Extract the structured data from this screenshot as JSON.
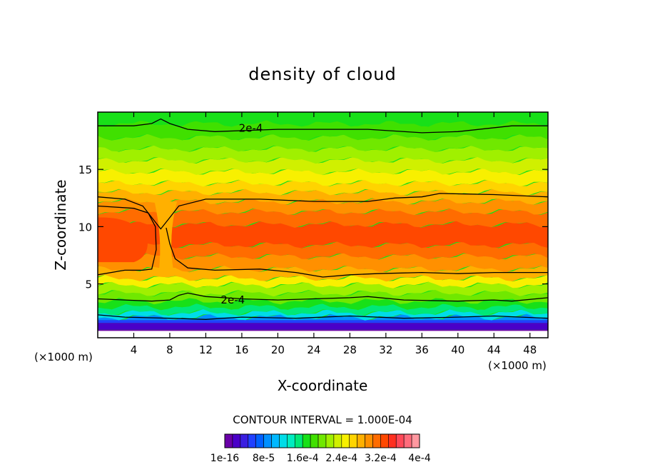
{
  "chart_data": {
    "type": "heatmap",
    "title": "density of cloud",
    "xlabel": "X-coordinate",
    "ylabel": "Z-coordinate",
    "x_unit": "(×1000 m)",
    "x_unit_right": "(×1000 m)",
    "xlim": [
      0,
      50
    ],
    "ylim": [
      0.3,
      20
    ],
    "x_ticks": [
      4,
      8,
      12,
      16,
      20,
      24,
      28,
      32,
      36,
      40,
      44,
      48
    ],
    "y_ticks": [
      5,
      10,
      15
    ],
    "contour_interval_text": "CONTOUR INTERVAL = 1.000E-04",
    "contour_labels": [
      {
        "text": "2e-4",
        "x": 17,
        "z": 18.6
      },
      {
        "text": "2e-4",
        "x": 15,
        "z": 3.6
      }
    ],
    "colorbar": {
      "labels": [
        "1e-16",
        "8e-5",
        "1.6e-4",
        "2.4e-4",
        "3.2e-4",
        "4e-4"
      ],
      "colors": [
        "#6a00a8",
        "#4a00c8",
        "#3a1ee0",
        "#2040ff",
        "#0060ff",
        "#0090ff",
        "#00b8ff",
        "#00dce8",
        "#00ecc0",
        "#00e878",
        "#18e018",
        "#40e000",
        "#70e800",
        "#a0f000",
        "#d0f000",
        "#f8f000",
        "#ffd400",
        "#ffb000",
        "#ff9000",
        "#ff6c00",
        "#ff4800",
        "#ff3020",
        "#ff4858",
        "#ff6c7c",
        "#ff98a0"
      ]
    },
    "bands": [
      {
        "z": 0.5,
        "color": "#ffffff"
      },
      {
        "z": 1.0,
        "color": "#6a00a8"
      },
      {
        "z": 1.6,
        "color": "#4a00c8"
      },
      {
        "z": 1.85,
        "color": "#2040ff"
      },
      {
        "z": 2.1,
        "color": "#0090ff"
      },
      {
        "z": 2.5,
        "color": "#00dce8"
      },
      {
        "z": 3.0,
        "color": "#00e878"
      },
      {
        "z": 3.5,
        "color": "#18e018"
      },
      {
        "z": 4.2,
        "color": "#70e800"
      },
      {
        "z": 4.9,
        "color": "#a0f000"
      },
      {
        "z": 5.5,
        "color": "#f8f000"
      },
      {
        "z": 6.3,
        "color": "#ffb000"
      },
      {
        "z": 7.4,
        "color": "#ff9000"
      },
      {
        "z": 8.4,
        "color": "#ff6c00"
      },
      {
        "z": 10.2,
        "color": "#ff4800"
      },
      {
        "z": 11.3,
        "color": "#ff6c00"
      },
      {
        "z": 12.2,
        "color": "#ff9000"
      },
      {
        "z": 13.0,
        "color": "#ffb000"
      },
      {
        "z": 13.8,
        "color": "#ffd400"
      },
      {
        "z": 14.8,
        "color": "#f8f000"
      },
      {
        "z": 15.8,
        "color": "#d0f000"
      },
      {
        "z": 16.8,
        "color": "#a0f000"
      },
      {
        "z": 17.8,
        "color": "#70e800"
      },
      {
        "z": 19.0,
        "color": "#40e000"
      },
      {
        "z": 20.0,
        "color": "#18e018"
      }
    ]
  }
}
